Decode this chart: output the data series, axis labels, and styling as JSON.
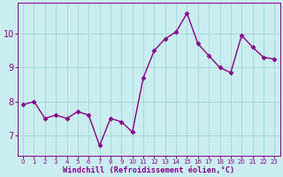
{
  "x": [
    0,
    1,
    2,
    3,
    4,
    5,
    6,
    7,
    8,
    9,
    10,
    11,
    12,
    13,
    14,
    15,
    16,
    17,
    18,
    19,
    20,
    21,
    22,
    23
  ],
  "y": [
    7.9,
    8.0,
    7.5,
    7.6,
    7.5,
    7.7,
    7.6,
    6.7,
    7.5,
    7.4,
    7.1,
    8.7,
    9.5,
    9.85,
    10.05,
    10.6,
    9.7,
    9.35,
    9.0,
    8.85,
    9.95,
    9.6,
    9.3,
    9.25
  ],
  "line_color": "#880088",
  "marker": "D",
  "marker_size": 2.5,
  "linewidth": 1.0,
  "background_color": "#caeef0",
  "grid_color": "#aad8d8",
  "xlabel": "Windchill (Refroidissement éolien,°C)",
  "xlabel_color": "#880088",
  "tick_color": "#880088",
  "yticks": [
    7,
    8,
    9,
    10
  ],
  "ylim": [
    6.4,
    10.9
  ],
  "xlim": [
    -0.5,
    23.5
  ],
  "xtick_fontsize": 5.0,
  "ytick_fontsize": 7.0,
  "xlabel_fontsize": 6.2
}
